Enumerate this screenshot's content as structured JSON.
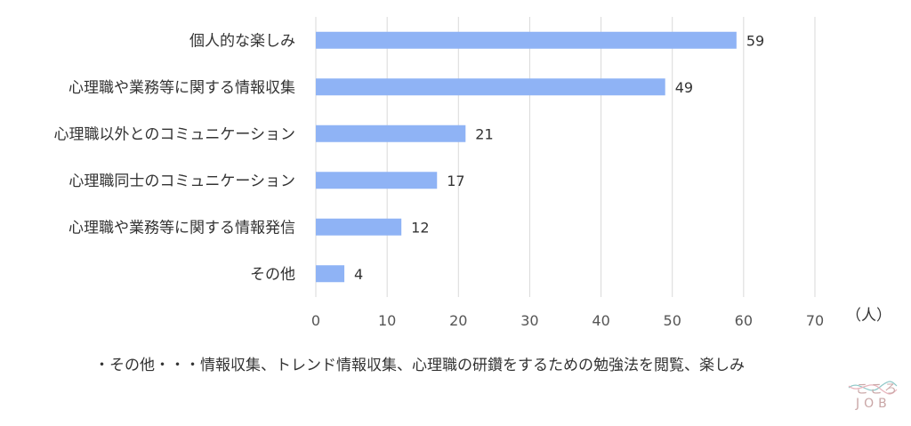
{
  "chart_data": {
    "type": "bar",
    "orientation": "horizontal",
    "categories": [
      "個人的な楽しみ",
      "心理職や業務等に関する情報収集",
      "心理職以外とのコミュニケーション",
      "心理職同士のコミュニケーション",
      "心理職や業務等に関する情報発信",
      "その他"
    ],
    "values": [
      59,
      49,
      21,
      17,
      12,
      4
    ],
    "xlim": [
      0,
      70
    ],
    "xticks": [
      0,
      10,
      20,
      30,
      40,
      50,
      60,
      70
    ],
    "unit_label": "（人）",
    "grid": true,
    "bar_color": "#8fb3f5",
    "grid_color": "#d9d9d9",
    "data_labels": true
  },
  "footnote": "・その他・・・情報収集、トレンド情報収集、心理職の研鑽をするための勉強法を閲覧、楽しみ",
  "logo": {
    "kana": "こころ",
    "job": "JOB",
    "color": "#c9a6a6",
    "wave_colors": [
      "#8fc8c8",
      "#e8b4bc"
    ]
  }
}
